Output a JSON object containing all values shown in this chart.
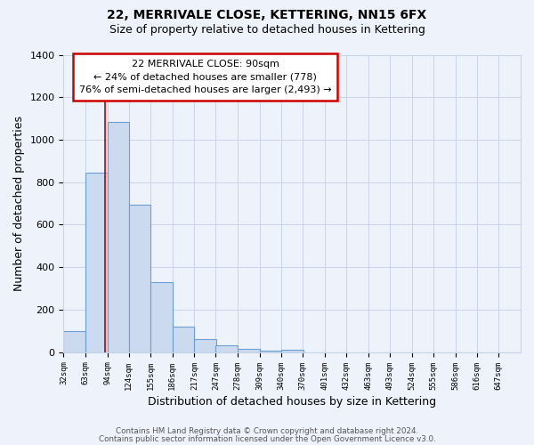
{
  "title1": "22, MERRIVALE CLOSE, KETTERING, NN15 6FX",
  "title2": "Size of property relative to detached houses in Kettering",
  "xlabel": "Distribution of detached houses by size in Kettering",
  "ylabel": "Number of detached properties",
  "bin_labels": [
    "32sqm",
    "63sqm",
    "94sqm",
    "124sqm",
    "155sqm",
    "186sqm",
    "217sqm",
    "247sqm",
    "278sqm",
    "309sqm",
    "340sqm",
    "370sqm",
    "401sqm",
    "432sqm",
    "463sqm",
    "493sqm",
    "524sqm",
    "555sqm",
    "586sqm",
    "616sqm",
    "647sqm"
  ],
  "bin_left_edges": [
    32,
    63,
    94,
    124,
    155,
    186,
    217,
    247,
    278,
    309,
    340,
    370,
    401,
    432,
    463,
    493,
    524,
    555,
    586,
    616,
    647
  ],
  "bar_heights": [
    100,
    845,
    1085,
    695,
    330,
    120,
    60,
    30,
    15,
    5,
    10,
    0,
    0,
    0,
    0,
    0,
    0,
    0,
    0,
    0,
    0
  ],
  "bar_color": "#ccdaf0",
  "bar_edgecolor": "#6a9fd8",
  "vline_x": 90,
  "vline_color": "#bb0000",
  "annotation_line1": "22 MERRIVALE CLOSE: 90sqm",
  "annotation_line2": "← 24% of detached houses are smaller (778)",
  "annotation_line3": "76% of semi-detached houses are larger (2,493) →",
  "annotation_box_facecolor": "#ffffff",
  "annotation_box_edgecolor": "#cc0000",
  "ylim": [
    0,
    1400
  ],
  "yticks": [
    0,
    200,
    400,
    600,
    800,
    1000,
    1200,
    1400
  ],
  "grid_color": "#c8d4e8",
  "footer1": "Contains HM Land Registry data © Crown copyright and database right 2024.",
  "footer2": "Contains public sector information licensed under the Open Government Licence v3.0.",
  "bg_color": "#eef2fa",
  "plot_bg_color": "#eef2fa",
  "title_fontsize": 10,
  "subtitle_fontsize": 9
}
